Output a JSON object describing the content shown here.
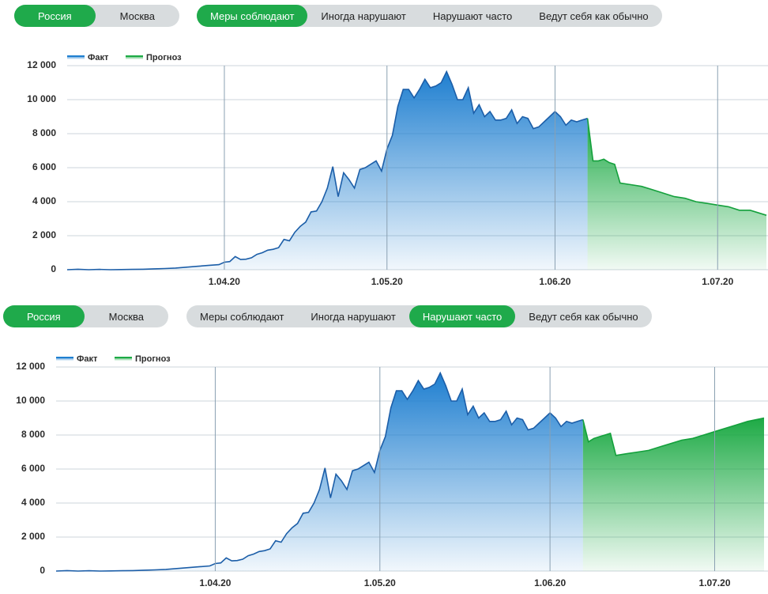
{
  "panels": [
    {
      "region_tabs": [
        "Россия",
        "Москва"
      ],
      "active_region": 0,
      "scenario_tabs": [
        "Меры соблюдают",
        "Иногда нарушают",
        "Нарушают часто",
        "Ведут себя как обычно"
      ],
      "active_scenario": 0
    },
    {
      "region_tabs": [
        "Россия",
        "Москва"
      ],
      "active_region": 0,
      "scenario_tabs": [
        "Меры соблюдают",
        "Иногда нарушают",
        "Нарушают часто",
        "Ведут себя как обычно"
      ],
      "active_scenario": 2
    }
  ],
  "chart_data": [
    {
      "type": "area",
      "grid": true,
      "xlim": [
        "2020-03-03",
        "2020-07-10"
      ],
      "xticks": [
        {
          "value": "2020-04-01",
          "label": "1.04.20"
        },
        {
          "value": "2020-05-01",
          "label": "1.05.20"
        },
        {
          "value": "2020-06-01",
          "label": "1.06.20"
        },
        {
          "value": "2020-07-01",
          "label": "1.07.20"
        }
      ],
      "ylim": [
        0,
        12000
      ],
      "yticks": [
        0,
        {
          "value": 2000,
          "label": "2 000"
        },
        {
          "value": 4000,
          "label": "4 000"
        },
        {
          "value": 6000,
          "label": "6 000"
        },
        {
          "value": 8000,
          "label": "8 000"
        },
        {
          "value": 10000,
          "label": "10 000"
        },
        {
          "value": 12000,
          "label": "12 000"
        }
      ],
      "series": [
        {
          "name": "Факт",
          "color": "#1f7fd0",
          "x": [
            "2020-03-03",
            "2020-03-05",
            "2020-03-07",
            "2020-03-09",
            "2020-03-11",
            "2020-03-13",
            "2020-03-15",
            "2020-03-17",
            "2020-03-19",
            "2020-03-21",
            "2020-03-23",
            "2020-03-25",
            "2020-03-27",
            "2020-03-29",
            "2020-03-31",
            "2020-04-01",
            "2020-04-02",
            "2020-04-03",
            "2020-04-04",
            "2020-04-05",
            "2020-04-06",
            "2020-04-07",
            "2020-04-08",
            "2020-04-09",
            "2020-04-10",
            "2020-04-11",
            "2020-04-12",
            "2020-04-13",
            "2020-04-14",
            "2020-04-15",
            "2020-04-16",
            "2020-04-17",
            "2020-04-18",
            "2020-04-19",
            "2020-04-20",
            "2020-04-21",
            "2020-04-22",
            "2020-04-23",
            "2020-04-24",
            "2020-04-25",
            "2020-04-26",
            "2020-04-27",
            "2020-04-28",
            "2020-04-29",
            "2020-04-30",
            "2020-05-01",
            "2020-05-02",
            "2020-05-03",
            "2020-05-04",
            "2020-05-05",
            "2020-05-06",
            "2020-05-07",
            "2020-05-08",
            "2020-05-09",
            "2020-05-10",
            "2020-05-11",
            "2020-05-12",
            "2020-05-13",
            "2020-05-14",
            "2020-05-15",
            "2020-05-16",
            "2020-05-17",
            "2020-05-18",
            "2020-05-19",
            "2020-05-20",
            "2020-05-21",
            "2020-05-22",
            "2020-05-23",
            "2020-05-24",
            "2020-05-25",
            "2020-05-26",
            "2020-05-27",
            "2020-05-28",
            "2020-05-29",
            "2020-05-30",
            "2020-05-31",
            "2020-06-01",
            "2020-06-02",
            "2020-06-03",
            "2020-06-04",
            "2020-06-05",
            "2020-06-06",
            "2020-06-07"
          ],
          "values": [
            0,
            30,
            0,
            20,
            0,
            10,
            20,
            30,
            50,
            70,
            100,
            150,
            200,
            250,
            300,
            440,
            480,
            770,
            600,
            620,
            700,
            900,
            1000,
            1150,
            1200,
            1300,
            1780,
            1700,
            2200,
            2550,
            2800,
            3400,
            3450,
            4000,
            4800,
            6060,
            4300,
            5700,
            5300,
            4800,
            5900,
            6000,
            6200,
            6400,
            5800,
            7100,
            7900,
            9600,
            10600,
            10600,
            10100,
            10600,
            11200,
            10700,
            10800,
            11000,
            11650,
            10900,
            10000,
            10000,
            10700,
            9200,
            9700,
            9000,
            9300,
            8800,
            8800,
            8900,
            9400,
            8600,
            9000,
            8900,
            8300,
            8400,
            8700,
            9000,
            9300,
            9000,
            8500,
            8800,
            8700,
            8800,
            8900
          ]
        },
        {
          "name": "Прогноз",
          "color": "#1daa45",
          "x": [
            "2020-06-07",
            "2020-06-08",
            "2020-06-09",
            "2020-06-10",
            "2020-06-11",
            "2020-06-12",
            "2020-06-13",
            "2020-06-15",
            "2020-06-17",
            "2020-06-19",
            "2020-06-21",
            "2020-06-23",
            "2020-06-25",
            "2020-06-27",
            "2020-06-29",
            "2020-07-01",
            "2020-07-03",
            "2020-07-05",
            "2020-07-07",
            "2020-07-10"
          ],
          "values": [
            8900,
            6400,
            6400,
            6500,
            6300,
            6200,
            5100,
            5000,
            4900,
            4700,
            4500,
            4300,
            4200,
            4000,
            3900,
            3800,
            3700,
            3500,
            3500,
            3200
          ]
        }
      ]
    },
    {
      "type": "area",
      "grid": true,
      "xlim": [
        "2020-03-03",
        "2020-07-10"
      ],
      "xticks": [
        {
          "value": "2020-04-01",
          "label": "1.04.20"
        },
        {
          "value": "2020-05-01",
          "label": "1.05.20"
        },
        {
          "value": "2020-06-01",
          "label": "1.06.20"
        },
        {
          "value": "2020-07-01",
          "label": "1.07.20"
        }
      ],
      "ylim": [
        0,
        12000
      ],
      "yticks": [
        0,
        {
          "value": 2000,
          "label": "2 000"
        },
        {
          "value": 4000,
          "label": "4 000"
        },
        {
          "value": 6000,
          "label": "6 000"
        },
        {
          "value": 8000,
          "label": "8 000"
        },
        {
          "value": 10000,
          "label": "10 000"
        },
        {
          "value": 12000,
          "label": "12 000"
        }
      ],
      "series": [
        {
          "name": "Факт",
          "color": "#1f7fd0",
          "x": [
            "2020-03-03",
            "2020-03-05",
            "2020-03-07",
            "2020-03-09",
            "2020-03-11",
            "2020-03-13",
            "2020-03-15",
            "2020-03-17",
            "2020-03-19",
            "2020-03-21",
            "2020-03-23",
            "2020-03-25",
            "2020-03-27",
            "2020-03-29",
            "2020-03-31",
            "2020-04-01",
            "2020-04-02",
            "2020-04-03",
            "2020-04-04",
            "2020-04-05",
            "2020-04-06",
            "2020-04-07",
            "2020-04-08",
            "2020-04-09",
            "2020-04-10",
            "2020-04-11",
            "2020-04-12",
            "2020-04-13",
            "2020-04-14",
            "2020-04-15",
            "2020-04-16",
            "2020-04-17",
            "2020-04-18",
            "2020-04-19",
            "2020-04-20",
            "2020-04-21",
            "2020-04-22",
            "2020-04-23",
            "2020-04-24",
            "2020-04-25",
            "2020-04-26",
            "2020-04-27",
            "2020-04-28",
            "2020-04-29",
            "2020-04-30",
            "2020-05-01",
            "2020-05-02",
            "2020-05-03",
            "2020-05-04",
            "2020-05-05",
            "2020-05-06",
            "2020-05-07",
            "2020-05-08",
            "2020-05-09",
            "2020-05-10",
            "2020-05-11",
            "2020-05-12",
            "2020-05-13",
            "2020-05-14",
            "2020-05-15",
            "2020-05-16",
            "2020-05-17",
            "2020-05-18",
            "2020-05-19",
            "2020-05-20",
            "2020-05-21",
            "2020-05-22",
            "2020-05-23",
            "2020-05-24",
            "2020-05-25",
            "2020-05-26",
            "2020-05-27",
            "2020-05-28",
            "2020-05-29",
            "2020-05-30",
            "2020-05-31",
            "2020-06-01",
            "2020-06-02",
            "2020-06-03",
            "2020-06-04",
            "2020-06-05",
            "2020-06-06",
            "2020-06-07"
          ],
          "values": [
            0,
            30,
            0,
            20,
            0,
            10,
            20,
            30,
            50,
            70,
            100,
            150,
            200,
            250,
            300,
            440,
            480,
            770,
            600,
            620,
            700,
            900,
            1000,
            1150,
            1200,
            1300,
            1780,
            1700,
            2200,
            2550,
            2800,
            3400,
            3450,
            4000,
            4800,
            6060,
            4300,
            5700,
            5300,
            4800,
            5900,
            6000,
            6200,
            6400,
            5800,
            7100,
            7900,
            9600,
            10600,
            10600,
            10100,
            10600,
            11200,
            10700,
            10800,
            11000,
            11650,
            10900,
            10000,
            10000,
            10700,
            9200,
            9700,
            9000,
            9300,
            8800,
            8800,
            8900,
            9400,
            8600,
            9000,
            8900,
            8300,
            8400,
            8700,
            9000,
            9300,
            9000,
            8500,
            8800,
            8700,
            8800,
            8900
          ]
        },
        {
          "name": "Прогноз",
          "color": "#1daa45",
          "x": [
            "2020-06-07",
            "2020-06-08",
            "2020-06-09",
            "2020-06-10",
            "2020-06-11",
            "2020-06-12",
            "2020-06-13",
            "2020-06-15",
            "2020-06-17",
            "2020-06-19",
            "2020-06-21",
            "2020-06-23",
            "2020-06-25",
            "2020-06-27",
            "2020-06-29",
            "2020-07-01",
            "2020-07-03",
            "2020-07-05",
            "2020-07-07",
            "2020-07-10"
          ],
          "values": [
            8900,
            7600,
            7800,
            7900,
            8000,
            8100,
            6800,
            6900,
            7000,
            7100,
            7300,
            7500,
            7700,
            7800,
            8000,
            8200,
            8400,
            8600,
            8800,
            9000
          ]
        }
      ]
    }
  ]
}
